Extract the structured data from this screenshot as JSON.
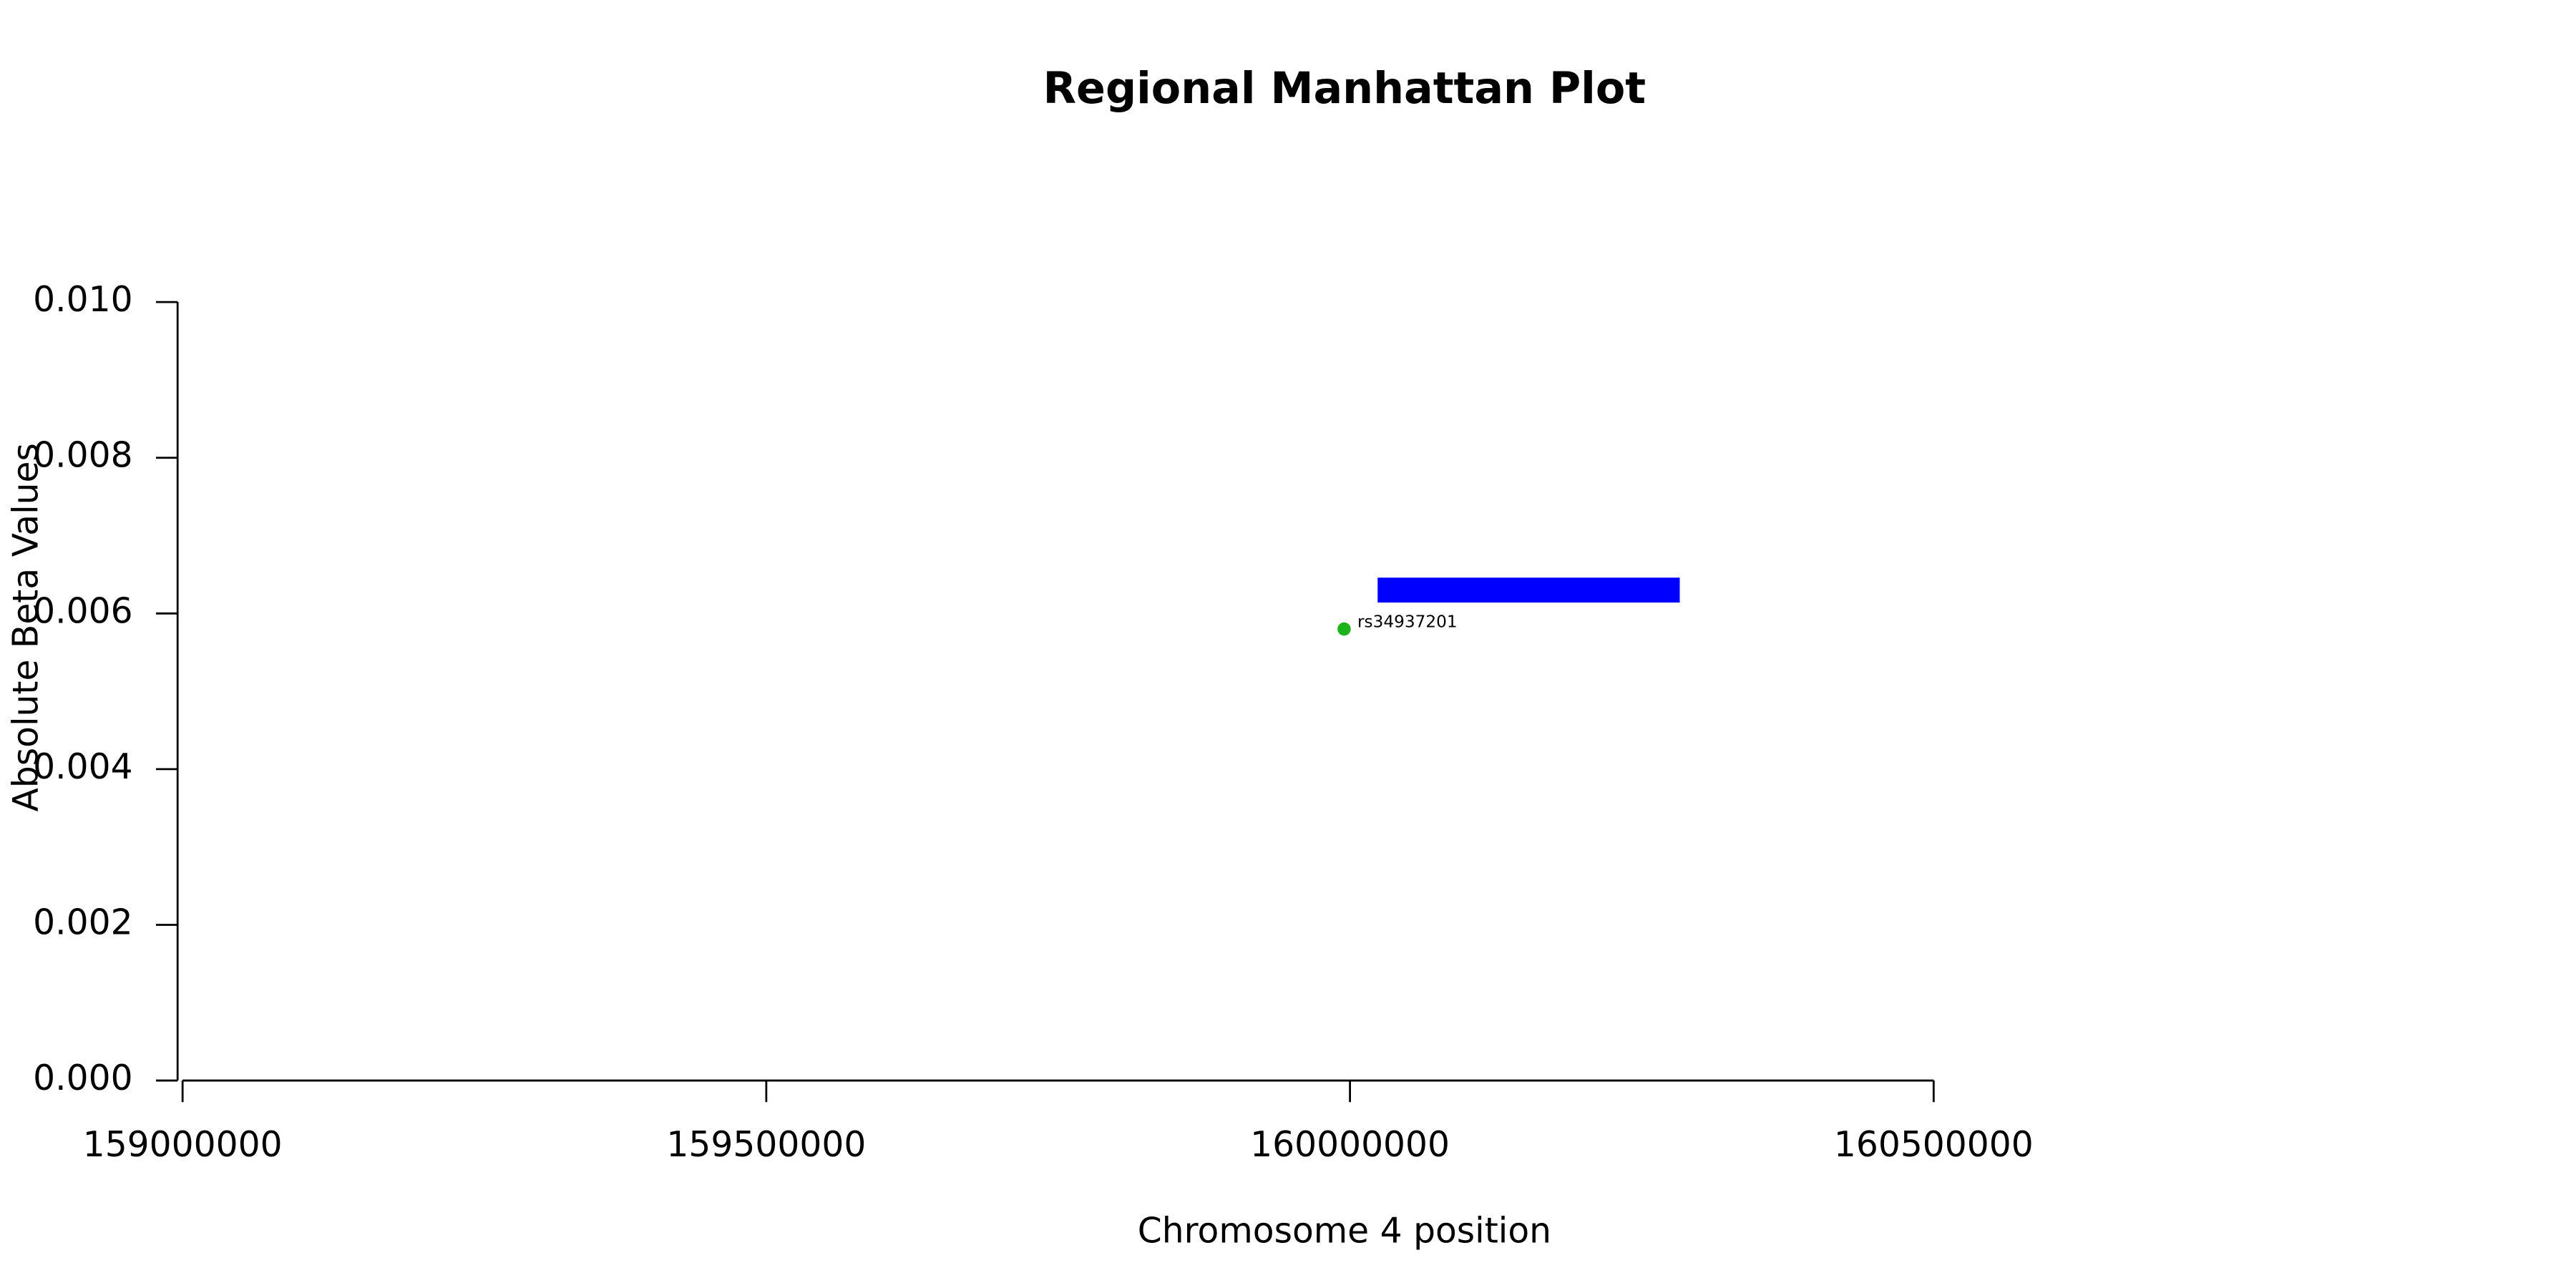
{
  "chart_data": {
    "type": "scatter",
    "title": "Regional Manhattan Plot",
    "x_label": "Chromosome 4 position",
    "y_label": "Absolute Beta Values",
    "xlim": [
      159000000,
      160500000
    ],
    "ylim": [
      0,
      0.01
    ],
    "xticks": [
      159000000,
      159500000,
      160000000,
      160500000
    ],
    "yticks": [
      {
        "value": 0,
        "label": "0.000"
      },
      0.002,
      0.004,
      0.006,
      0.008,
      {
        "value": 0.01,
        "label": "0.010"
      }
    ],
    "grid": false,
    "series": [
      {
        "x": [
          159995000
        ],
        "values": [
          0.0058
        ],
        "point_labels": [
          "rs34937201"
        ],
        "color": "#1db31d"
      }
    ],
    "gene_regions": [
      {
        "start": 160023700,
        "end": 160282500,
        "ymin": 0.00614,
        "ymax": 0.00646,
        "color": "#0000ff"
      }
    ]
  }
}
